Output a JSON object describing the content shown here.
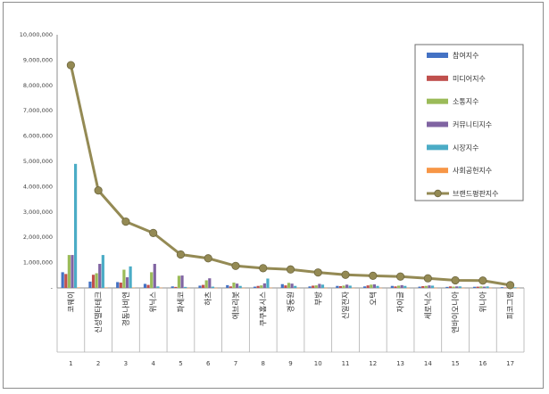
{
  "chart_data": {
    "type": "bar",
    "title": "",
    "xlabel": "",
    "ylabel": "",
    "ylim": [
      0,
      10000000
    ],
    "yticks": [
      "-",
      "1,000,000",
      "2,000,000",
      "3,000,000",
      "4,000,000",
      "5,000,000",
      "6,000,000",
      "7,000,000",
      "8,000,000",
      "9,000,000",
      "10,000,000"
    ],
    "grid": false,
    "legend_position": "top-right",
    "x": [
      "1",
      "2",
      "3",
      "4",
      "5",
      "6",
      "7",
      "8",
      "9",
      "10",
      "11",
      "12",
      "13",
      "14",
      "15",
      "16",
      "17"
    ],
    "categories": [
      "코웨이",
      "신성델타테크",
      "경동나비엔",
      "위닉스",
      "파세코",
      "하츠",
      "에브리봇",
      "쿠쿠홈시스",
      "경동원",
      "부방",
      "신일전자",
      "오텍",
      "자이글",
      "세로닉스",
      "엔바이오니아",
      "위니아",
      "피코그램"
    ],
    "series": [
      {
        "name": "참여지수",
        "color": "#4472c4",
        "kind": "bar",
        "values": [
          620000,
          250000,
          230000,
          160000,
          60000,
          90000,
          110000,
          50000,
          150000,
          60000,
          80000,
          60000,
          80000,
          50000,
          40000,
          45000,
          30000
        ]
      },
      {
        "name": "미디어지수",
        "color": "#c0504d",
        "kind": "bar",
        "values": [
          550000,
          520000,
          210000,
          120000,
          40000,
          120000,
          60000,
          80000,
          100000,
          90000,
          70000,
          100000,
          60000,
          70000,
          60000,
          50000,
          15000
        ]
      },
      {
        "name": "소통지수",
        "color": "#9bbb59",
        "kind": "bar",
        "values": [
          1300000,
          580000,
          720000,
          620000,
          480000,
          300000,
          210000,
          100000,
          200000,
          100000,
          90000,
          130000,
          90000,
          80000,
          50000,
          60000,
          20000
        ]
      },
      {
        "name": "커뮤니티지수",
        "color": "#8064a2",
        "kind": "bar",
        "values": [
          1300000,
          950000,
          420000,
          950000,
          490000,
          380000,
          170000,
          180000,
          170000,
          160000,
          130000,
          140000,
          110000,
          100000,
          60000,
          50000,
          15000
        ]
      },
      {
        "name": "시장지수",
        "color": "#4bacc6",
        "kind": "bar",
        "values": [
          4900000,
          1300000,
          850000,
          60000,
          40000,
          50000,
          80000,
          370000,
          80000,
          130000,
          90000,
          80000,
          80000,
          90000,
          60000,
          60000,
          25000
        ]
      },
      {
        "name": "사회공헌지수",
        "color": "#f79646",
        "kind": "bar",
        "values": [
          20000,
          15000,
          15000,
          10000,
          5000,
          5000,
          5000,
          10000,
          5000,
          5000,
          5000,
          5000,
          5000,
          5000,
          5000,
          5000,
          2000
        ]
      },
      {
        "name": "브랜드평판지수",
        "color": "#948a54",
        "kind": "line",
        "values": [
          8800000,
          3850000,
          2620000,
          2170000,
          1320000,
          1170000,
          870000,
          780000,
          730000,
          610000,
          520000,
          480000,
          450000,
          380000,
          300000,
          290000,
          110000
        ]
      }
    ]
  }
}
